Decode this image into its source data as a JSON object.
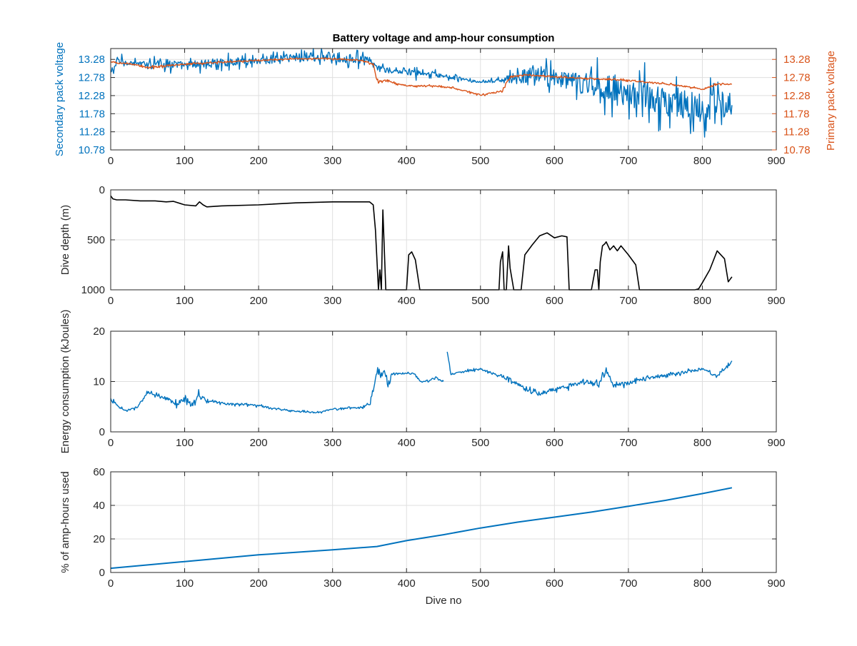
{
  "colors": {
    "blue": "#0072bd",
    "orange": "#d95319",
    "black": "#000000",
    "axis": "#262626",
    "grid": "#dfdfdf"
  },
  "chart_data": [
    {
      "type": "line",
      "title": "Battery voltage and amp-hour consumption",
      "xlabel": "",
      "ylabel": "Secondary pack voltage",
      "ylabel_right": "Primary pack voltage",
      "xlim": [
        0,
        900
      ],
      "ylim": [
        10.78,
        13.58
      ],
      "xticks": [
        0,
        100,
        200,
        300,
        400,
        500,
        600,
        700,
        800,
        900
      ],
      "yticks_left": [
        10.78,
        11.28,
        11.78,
        12.28,
        12.78,
        13.28
      ],
      "ytick_labels_left": [
        "10.78",
        "11.28",
        "11.78",
        "12.28",
        "12.78",
        "13.28"
      ],
      "yticks_right": [
        10.78,
        11.28,
        11.78,
        12.28,
        12.78,
        13.28
      ],
      "ytick_labels_right": [
        "10.78",
        "11.28",
        "11.78",
        "12.28",
        "12.78",
        "13.28"
      ],
      "grid": true,
      "series": [
        {
          "axis": "left",
          "color": "#0072bd",
          "x": [
            0,
            10,
            20,
            40,
            60,
            80,
            100,
            120,
            150,
            200,
            250,
            300,
            330,
            350,
            360,
            375,
            390,
            410,
            440,
            470,
            500,
            530,
            560,
            580,
            600,
            620,
            650,
            680,
            700,
            720,
            740,
            760,
            780,
            800,
            820,
            840
          ],
          "y": [
            12.9,
            13.25,
            13.2,
            13.15,
            13.2,
            13.15,
            13.1,
            13.15,
            13.2,
            13.25,
            13.35,
            13.35,
            13.3,
            13.25,
            13.05,
            12.95,
            12.95,
            12.9,
            12.85,
            12.75,
            12.65,
            12.7,
            12.8,
            12.9,
            12.75,
            12.7,
            12.55,
            12.5,
            12.3,
            12.35,
            12.2,
            12.15,
            12.0,
            12.0,
            11.9,
            12.1
          ],
          "noise": [
            0.25,
            0.3,
            0.15,
            0.15,
            0.25,
            0.3,
            0.25,
            0.3,
            0.25,
            0.25,
            0.3,
            0.3,
            0.3,
            0.2,
            0.2,
            0.15,
            0.1,
            0.2,
            0.15,
            0.1,
            0.05,
            0.15,
            0.5,
            0.5,
            0.5,
            0.6,
            0.8,
            0.9,
            0.8,
            0.9,
            0.9,
            0.9,
            0.9,
            1.0,
            1.1,
            0.9
          ]
        },
        {
          "axis": "right",
          "color": "#d95319",
          "x": [
            0,
            30,
            50,
            100,
            150,
            200,
            250,
            300,
            340,
            355,
            360,
            370,
            400,
            430,
            460,
            500,
            530,
            540,
            560,
            600,
            650,
            700,
            750,
            790,
            800,
            820,
            840
          ],
          "y": [
            13.2,
            13.15,
            13.05,
            13.15,
            13.2,
            13.25,
            13.3,
            13.3,
            13.25,
            13.15,
            12.65,
            12.7,
            12.55,
            12.55,
            12.5,
            12.3,
            12.4,
            12.8,
            12.85,
            12.8,
            12.75,
            12.7,
            12.6,
            12.5,
            12.45,
            12.6,
            12.6
          ],
          "noise": [
            0.05,
            0.05,
            0.05,
            0.05,
            0.04,
            0.03,
            0.03,
            0.04,
            0.04,
            0.05,
            0.1,
            0.05,
            0.04,
            0.04,
            0.04,
            0.04,
            0.06,
            0.05,
            0.04,
            0.04,
            0.04,
            0.04,
            0.04,
            0.04,
            0.04,
            0.04,
            0.04
          ]
        }
      ]
    },
    {
      "type": "line",
      "title": "",
      "xlabel": "",
      "ylabel": "Dive depth (m)",
      "xlim": [
        0,
        900
      ],
      "ylim": [
        0,
        1000
      ],
      "y_reversed": true,
      "xticks": [
        0,
        100,
        200,
        300,
        400,
        500,
        600,
        700,
        800,
        900
      ],
      "yticks": [
        0,
        500,
        1000
      ],
      "ytick_labels": [
        "0",
        "500",
        "1000"
      ],
      "grid": true,
      "series": [
        {
          "color": "#000000",
          "x": [
            0,
            3,
            8,
            20,
            40,
            60,
            75,
            85,
            100,
            115,
            120,
            125,
            130,
            150,
            200,
            250,
            300,
            340,
            350,
            355,
            358,
            362,
            364,
            366,
            368,
            372,
            400,
            403,
            407,
            412,
            418,
            420,
            450,
            500,
            525,
            527,
            530,
            532,
            535,
            538,
            540,
            545,
            550,
            555,
            560,
            570,
            580,
            590,
            600,
            610,
            617,
            620,
            630,
            650,
            655,
            658,
            660,
            662,
            665,
            668,
            670,
            675,
            680,
            685,
            690,
            700,
            710,
            715,
            718,
            720,
            760,
            790,
            795,
            800,
            810,
            820,
            830,
            835,
            840
          ],
          "y": [
            60,
            90,
            100,
            100,
            110,
            110,
            120,
            115,
            150,
            160,
            120,
            150,
            170,
            160,
            150,
            130,
            120,
            120,
            120,
            150,
            400,
            1000,
            800,
            1000,
            200,
            1000,
            1000,
            650,
            620,
            700,
            1000,
            1000,
            1000,
            1000,
            1000,
            720,
            620,
            1000,
            1000,
            560,
            780,
            1000,
            1000,
            1000,
            650,
            550,
            460,
            430,
            480,
            460,
            470,
            1000,
            1000,
            1000,
            800,
            800,
            1000,
            720,
            560,
            540,
            520,
            600,
            560,
            610,
            560,
            650,
            750,
            1000,
            1000,
            1000,
            1000,
            1000,
            990,
            930,
            800,
            610,
            690,
            920,
            870
          ]
        }
      ]
    },
    {
      "type": "line",
      "title": "",
      "xlabel": "",
      "ylabel": "Energy consumption (kJoules)",
      "xlim": [
        0,
        900
      ],
      "ylim": [
        0,
        20
      ],
      "xticks": [
        0,
        100,
        200,
        300,
        400,
        500,
        600,
        700,
        800,
        900
      ],
      "yticks": [
        0,
        10,
        20
      ],
      "ytick_labels": [
        "0",
        "10",
        "20"
      ],
      "grid": true,
      "series": [
        {
          "color": "#0072bd",
          "x": [
            0,
            10,
            20,
            35,
            50,
            60,
            75,
            90,
            100,
            110,
            120,
            130,
            140,
            160,
            180,
            200,
            220,
            240,
            260,
            280,
            300,
            320,
            340,
            350,
            355,
            360,
            365,
            370,
            375,
            380,
            390,
            400,
            410,
            420,
            430,
            440,
            450,
            null,
            455,
            460,
            480,
            500,
            520,
            540,
            560,
            580,
            600,
            620,
            640,
            660,
            670,
            680,
            690,
            700,
            720,
            740,
            760,
            780,
            800,
            820,
            840
          ],
          "y": [
            6.5,
            5.0,
            4.2,
            4.8,
            7.8,
            7.2,
            6.5,
            5.5,
            6.5,
            5.5,
            7.5,
            6.0,
            6.0,
            5.5,
            5.5,
            5.2,
            4.6,
            4.2,
            4.0,
            3.8,
            4.5,
            4.8,
            4.8,
            5.5,
            8.5,
            12.5,
            11.0,
            12.5,
            9.5,
            11.5,
            11.5,
            11.8,
            11.5,
            10.0,
            10.2,
            10.8,
            10.0,
            null,
            16.0,
            11.5,
            12.0,
            12.5,
            11.5,
            10.5,
            8.5,
            7.5,
            8.5,
            9.0,
            10.0,
            9.5,
            12.5,
            9.0,
            9.5,
            9.5,
            10.5,
            11.0,
            11.5,
            12.0,
            12.5,
            11.0,
            14.0
          ],
          "noise": [
            0.8,
            0.5,
            0.3,
            0.4,
            0.6,
            0.8,
            1.0,
            1.0,
            1.0,
            1.0,
            1.2,
            0.5,
            0.4,
            0.4,
            0.4,
            0.4,
            0.3,
            0.3,
            0.3,
            0.3,
            0.3,
            0.3,
            0.3,
            0.5,
            1.5,
            1.5,
            1.2,
            1.0,
            1.5,
            0.8,
            0.5,
            0.5,
            0.5,
            0.4,
            0.3,
            0.4,
            0.4,
            null,
            0.5,
            0.4,
            0.4,
            0.4,
            0.6,
            0.8,
            0.8,
            1.0,
            0.8,
            0.8,
            0.8,
            1.0,
            1.0,
            0.8,
            0.8,
            0.8,
            0.6,
            0.5,
            0.6,
            0.6,
            0.6,
            0.6,
            0.6
          ]
        }
      ]
    },
    {
      "type": "line",
      "title": "",
      "xlabel": "Dive no",
      "ylabel": "% of amp-hours used",
      "xlim": [
        0,
        900
      ],
      "ylim": [
        0,
        60
      ],
      "xticks": [
        0,
        100,
        200,
        300,
        400,
        500,
        600,
        700,
        800,
        900
      ],
      "yticks": [
        0,
        20,
        40,
        60
      ],
      "ytick_labels": [
        "0",
        "20",
        "40",
        "60"
      ],
      "grid": true,
      "series": [
        {
          "color": "#0072bd",
          "x": [
            0,
            100,
            200,
            300,
            360,
            400,
            450,
            500,
            550,
            600,
            650,
            700,
            750,
            800,
            840
          ],
          "y": [
            2.5,
            6.5,
            10.5,
            13.5,
            15.5,
            19.0,
            22.5,
            26.5,
            30.0,
            33.0,
            36.0,
            39.5,
            43.0,
            47.0,
            50.5
          ]
        }
      ]
    }
  ]
}
